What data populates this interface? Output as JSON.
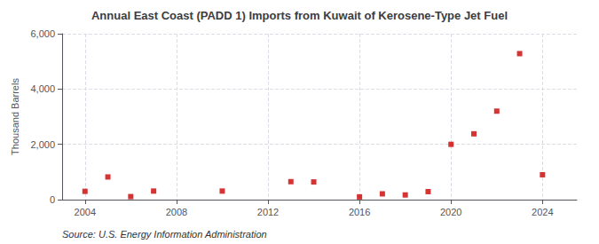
{
  "chart_data": {
    "type": "scatter",
    "title": "Annual East Coast (PADD 1) Imports from Kuwait of Kerosene-Type Jet Fuel",
    "y_label": "Thousand Barrels",
    "annotations": [
      "Source: U.S. Energy Information Administration"
    ],
    "x": [
      2004,
      2005,
      2006,
      2007,
      2010,
      2013,
      2014,
      2016,
      2017,
      2018,
      2019,
      2020,
      2021,
      2022,
      2023,
      2024
    ],
    "values": [
      300,
      820,
      110,
      310,
      310,
      650,
      640,
      100,
      210,
      170,
      290,
      2000,
      2380,
      3200,
      5280,
      900
    ],
    "color": "#cc0000",
    "marker": "square",
    "xlim": [
      2003,
      2025.5
    ],
    "xticks": [
      2004,
      2008,
      2012,
      2016,
      2020,
      2024
    ],
    "ylim": [
      0,
      6000
    ],
    "yticks": [
      0,
      {
        "value": 2000,
        "label": "2,000"
      },
      {
        "value": 4000,
        "label": "4,000"
      },
      {
        "value": 6000,
        "label": "6,000"
      }
    ],
    "grid": true
  }
}
